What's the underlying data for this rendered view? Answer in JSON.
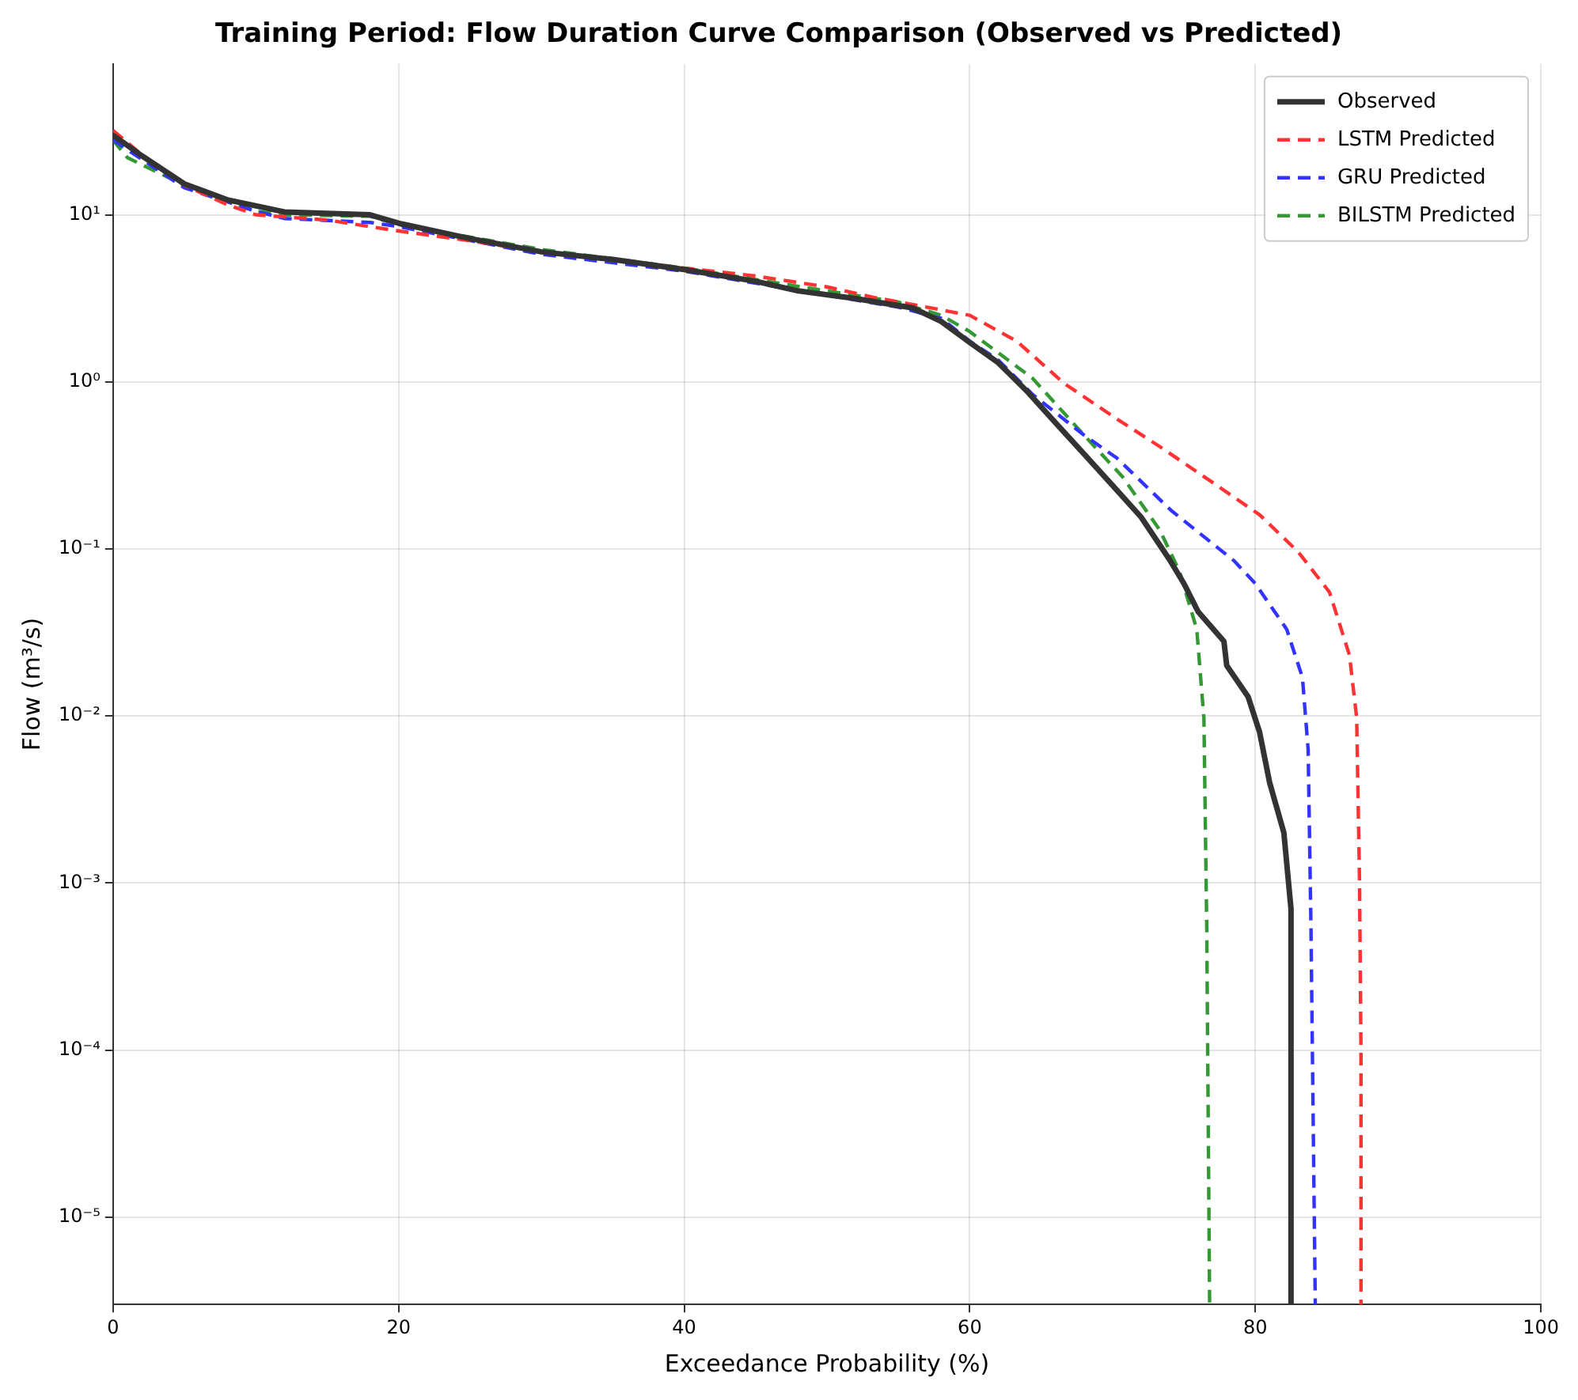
{
  "chart_data": {
    "type": "line",
    "title": "Training Period: Flow Duration Curve Comparison (Observed vs Predicted)",
    "xlabel": "Exceedance Probability (%)",
    "ylabel": "Flow (m³/s)",
    "log": "y",
    "grid": true,
    "legend": "top right",
    "marker": "none",
    "xlim": [
      0,
      100
    ],
    "xticks": [
      0,
      20,
      40,
      60,
      80,
      100
    ],
    "ylim": [
      3e-06,
      80
    ],
    "yticks": [
      {
        "value": 1e-05,
        "label": "10⁻⁵"
      },
      {
        "value": 0.0001,
        "label": "10⁻⁴"
      },
      {
        "value": 0.001,
        "label": "10⁻³"
      },
      {
        "value": 0.01,
        "label": "10⁻²"
      },
      {
        "value": 0.1,
        "label": "10⁻¹"
      },
      {
        "value": 1,
        "label": "10⁰"
      },
      {
        "value": 10,
        "label": "10¹"
      }
    ],
    "series": [
      {
        "name": "Observed",
        "color": "#333333",
        "line_style": "solid",
        "x": [
          0,
          2,
          5,
          8,
          12,
          18,
          20,
          25,
          30,
          35,
          40,
          45,
          48,
          52,
          56,
          58,
          60,
          62,
          64,
          66,
          68,
          70,
          72,
          74,
          75,
          76,
          77.8,
          78,
          79.5,
          80.3,
          81,
          82,
          82.5,
          82.5
        ],
        "values": [
          30,
          22.6,
          15.3,
          12.3,
          10.4,
          10,
          8.9,
          7.2,
          6.0,
          5.4,
          4.7,
          4.0,
          3.5,
          3.15,
          2.77,
          2.3,
          1.72,
          1.3,
          0.88,
          0.57,
          0.37,
          0.24,
          0.155,
          0.086,
          0.062,
          0.042,
          0.028,
          0.02,
          0.013,
          0.008,
          0.004,
          0.002,
          0.0007,
          3e-06
        ]
      },
      {
        "name": "LSTM Predicted",
        "color": "#ff3333",
        "line_style": "dashed",
        "x": [
          0,
          2,
          5,
          8,
          10,
          15,
          20,
          25,
          30,
          40,
          45,
          50,
          53.3,
          57,
          60,
          63.3,
          66.6,
          70.3,
          73.3,
          77,
          80.3,
          83,
          85.2,
          86.6,
          87.1,
          87.3,
          87.4,
          87.4
        ],
        "values": [
          32,
          23,
          15,
          11.5,
          10,
          9.3,
          8.0,
          7,
          6,
          4.8,
          4.3,
          3.7,
          3.2,
          2.8,
          2.5,
          1.75,
          0.98,
          0.6,
          0.41,
          0.25,
          0.16,
          0.096,
          0.055,
          0.023,
          0.0097,
          0.001,
          0.0001,
          3e-06
        ]
      },
      {
        "name": "GRU Predicted",
        "color": "#3333ff",
        "line_style": "dashed",
        "x": [
          0,
          5,
          10,
          12,
          18,
          20,
          30,
          40,
          50,
          55,
          58,
          60,
          62,
          64.4,
          68,
          70.3,
          74.1,
          78.5,
          80,
          82.2,
          83.3,
          83.7,
          83.9,
          84.2
        ],
        "values": [
          28,
          14.5,
          10.5,
          9.5,
          9.0,
          8.5,
          5.8,
          4.6,
          3.3,
          2.8,
          2.4,
          1.75,
          1.35,
          0.84,
          0.48,
          0.35,
          0.17,
          0.085,
          0.062,
          0.033,
          0.017,
          0.0063,
          0.00053,
          3e-06
        ]
      },
      {
        "name": "BILSTM Predicted",
        "color": "#339933",
        "line_style": "dashed",
        "x": [
          0,
          1,
          5,
          10,
          12,
          18,
          20,
          30,
          40,
          50,
          55,
          58,
          60,
          64.4,
          68,
          70.7,
          73.3,
          74.7,
          75.9,
          76.4,
          76.6,
          76.8
        ],
        "values": [
          28,
          22,
          15,
          10.5,
          10,
          9.8,
          8.7,
          6.2,
          4.8,
          3.5,
          3.0,
          2.5,
          2.0,
          1.05,
          0.48,
          0.27,
          0.13,
          0.073,
          0.033,
          0.0097,
          0.00053,
          3e-06
        ]
      }
    ]
  }
}
